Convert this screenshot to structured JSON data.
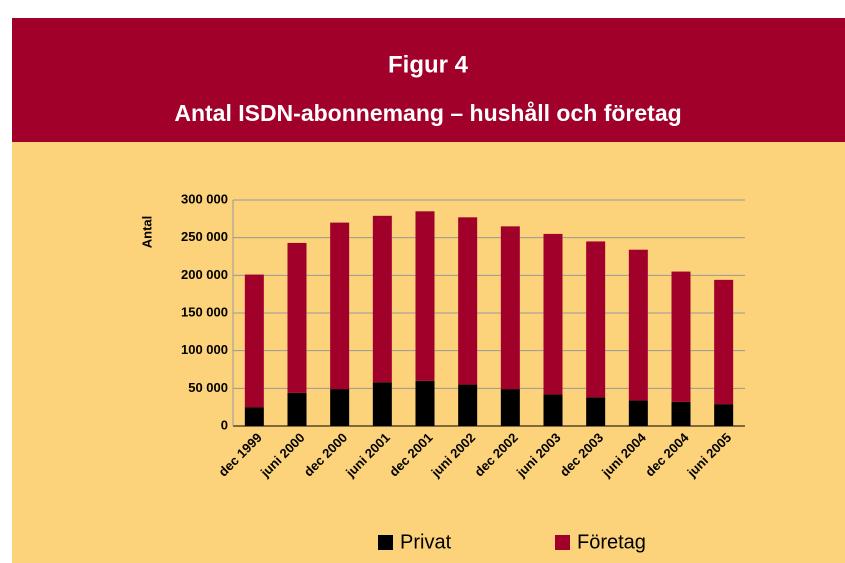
{
  "chart_data": {
    "type": "stacked_bar",
    "title": "Figur 4",
    "subtitle": "Antal ISDN-abonnemang – hushåll och företag",
    "y_label": "Antal",
    "categories": [
      "dec 1999",
      "juni 2000",
      "dec 2000",
      "juni 2001",
      "dec 2001",
      "juni 2002",
      "dec 2002",
      "juni 2003",
      "dec 2003",
      "juni 2004",
      "dec 2004",
      "juni 2005"
    ],
    "series": [
      {
        "name": "Privat",
        "color": "#000000",
        "values": [
          25000,
          44000,
          49000,
          58000,
          60000,
          55000,
          49000,
          42000,
          38000,
          34000,
          32000,
          29000
        ]
      },
      {
        "name": "Företag",
        "color": "#a0002a",
        "values": [
          176000,
          199000,
          221000,
          221000,
          225000,
          222000,
          216000,
          213000,
          207000,
          200000,
          173000,
          165000
        ]
      }
    ],
    "ylim": [
      0,
      300000
    ],
    "yticks": [
      0,
      {
        "value": 50000,
        "label": "50 000"
      },
      {
        "value": 100000,
        "label": "100 000"
      },
      {
        "value": 150000,
        "label": "150 000"
      },
      {
        "value": 200000,
        "label": "200 000"
      },
      {
        "value": 250000,
        "label": "250 000"
      },
      {
        "value": 300000,
        "label": "300 000"
      }
    ],
    "grid": true,
    "legend": "bottom"
  }
}
